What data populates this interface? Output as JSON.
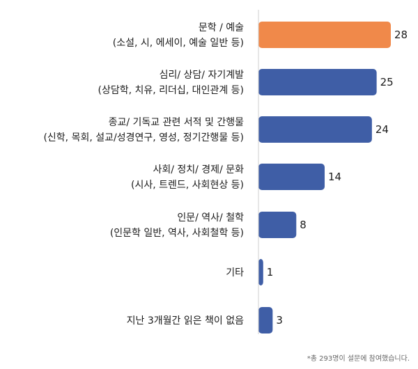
{
  "chart_data": {
    "type": "bar",
    "orientation": "horizontal",
    "categories": [
      [
        "문학 / 예술",
        "(소설, 시, 에세이, 예술 일반 등)"
      ],
      [
        "심리/ 상담/ 자기계발",
        "(상담학, 치유, 리더십, 대인관계 등)"
      ],
      [
        "종교/ 기독교 관련 서적 및 간행물",
        "(신학, 목회, 설교/성경연구, 영성, 정기간행물 등)"
      ],
      [
        "사회/ 정치/ 경제/ 문화",
        "(시사, 트렌드, 사회현상 등)"
      ],
      [
        "인문/ 역사/ 철학",
        "(인문학 일반, 역사, 사회철학 등)"
      ],
      [
        "기타"
      ],
      [
        "지난 3개월간 읽은 책이 없음"
      ]
    ],
    "values": [
      28,
      25,
      24,
      14,
      8,
      1,
      3
    ],
    "xlim": [
      0,
      30
    ],
    "highlight_index": 0,
    "grid": false,
    "legend": "none",
    "colors": {
      "bar": "#3f5ea6",
      "highlight": "#f0894a",
      "axis": "#cfcfcf"
    },
    "footnote": "*총 293명이 설문에 참여했습니다."
  }
}
